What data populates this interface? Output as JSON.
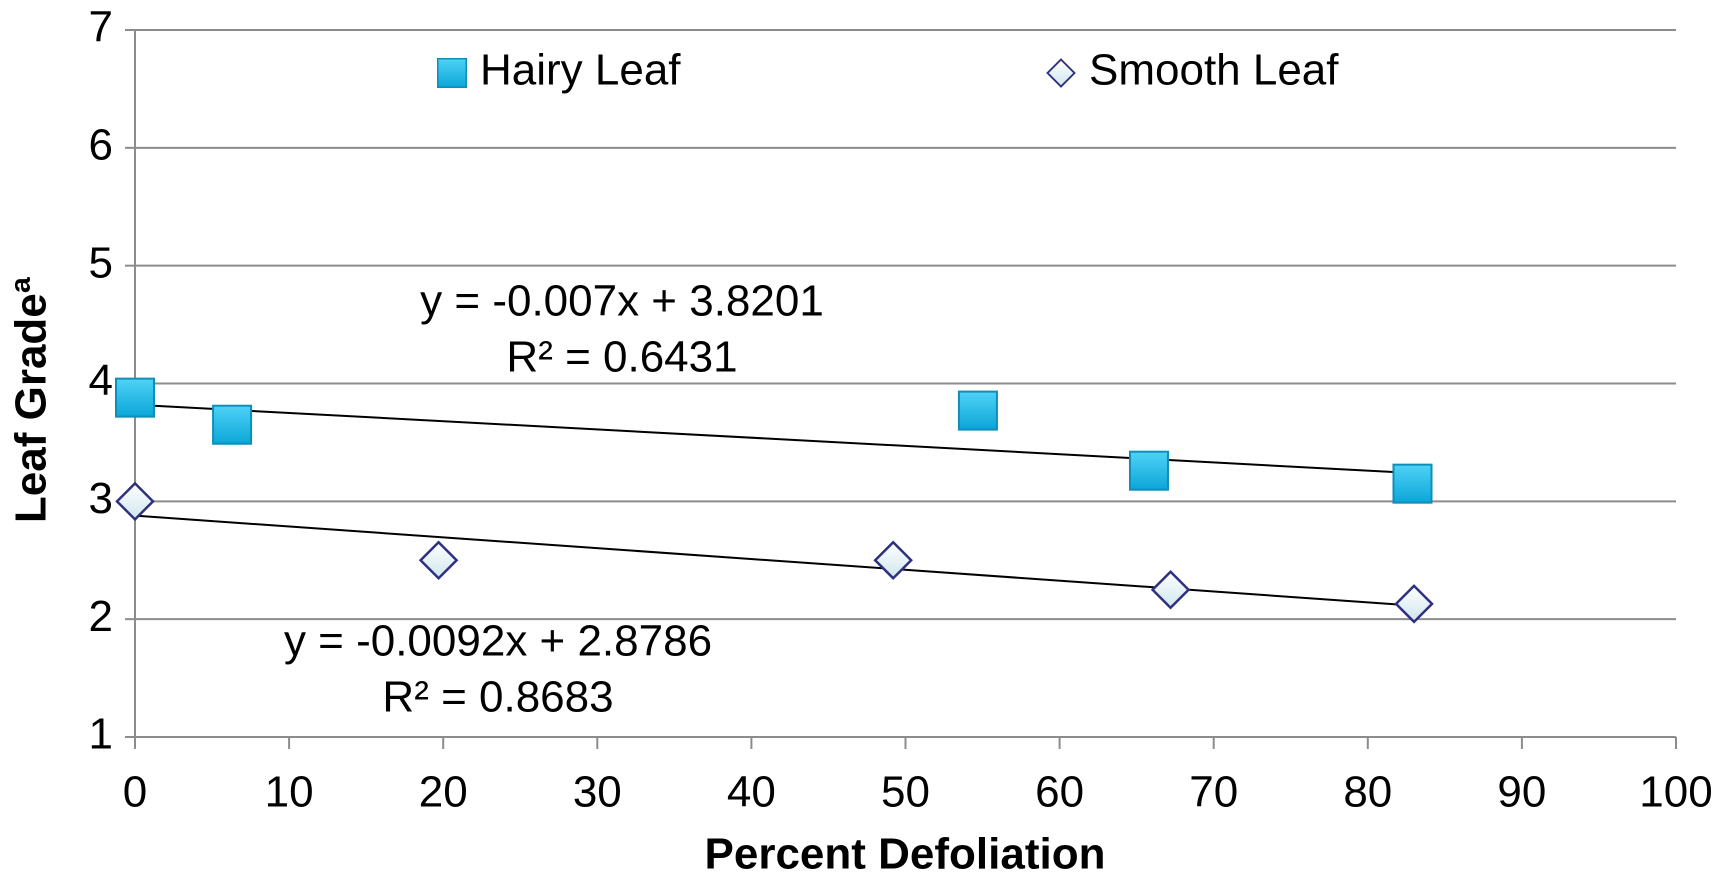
{
  "chart_data": {
    "type": "scatter",
    "xlabel": "Percent Defoliation",
    "ylabel": "Leaf Gradeª",
    "xlim": [
      0,
      100
    ],
    "xticks": [
      0,
      10,
      20,
      30,
      40,
      50,
      60,
      70,
      80,
      90,
      100
    ],
    "ylim": [
      1,
      7
    ],
    "yticks": [
      1,
      2,
      3,
      4,
      5,
      6,
      7
    ],
    "grid": true,
    "legend": "top",
    "series": [
      {
        "name": "Hairy Leaf",
        "color": "#1ab6e6",
        "marker": "square",
        "x": [
          0,
          6.3,
          54.7,
          65.8,
          82.9
        ],
        "values": [
          3.88,
          3.65,
          3.77,
          3.26,
          3.15
        ],
        "trendline": {
          "slope": -0.007,
          "intercept": 3.8201,
          "equation": "y = -0.007x + 3.8201",
          "r2": "R² = 0.6431"
        }
      },
      {
        "name": "Smooth Leaf",
        "color": "#2e3080",
        "marker": "diamond",
        "x": [
          0,
          19.7,
          49.2,
          67.2,
          83
        ],
        "values": [
          3.0,
          2.5,
          2.5,
          2.25,
          2.13
        ],
        "trendline": {
          "slope": -0.0092,
          "intercept": 2.8786,
          "equation": "y = -0.0092x + 2.8786",
          "r2": "R² = 0.8683"
        }
      }
    ]
  }
}
